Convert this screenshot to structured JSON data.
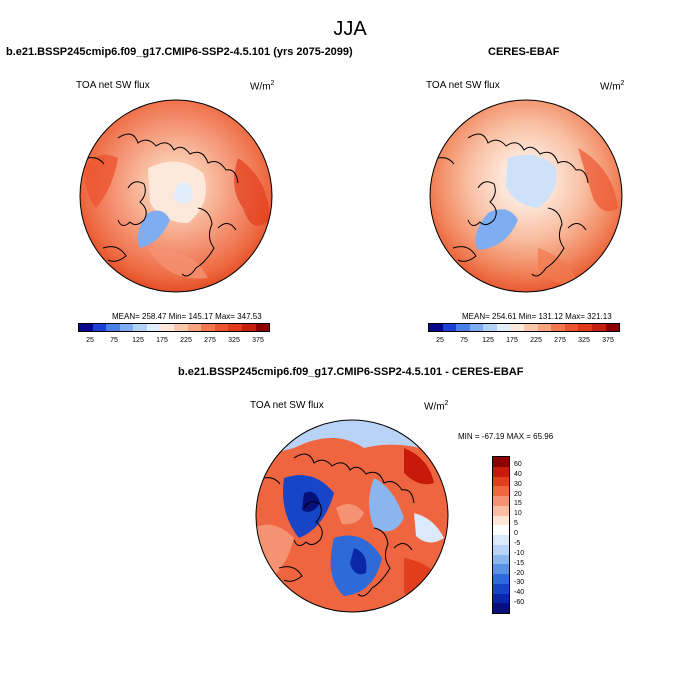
{
  "figure": {
    "season": "JJA",
    "left_title": "b.e21.BSSP245cmip6.f09_g17.CMIP6-SSP2-4.5.101 (yrs 2075-2099)",
    "right_title": "CERES-EBAF",
    "bottom_title": "b.e21.BSSP245cmip6.f09_g17.CMIP6-SSP2-4.5.101 - CERES-EBAF"
  },
  "panels": {
    "model": {
      "variable": "TOA net SW flux",
      "units_base": "W/m",
      "units_exp": "2",
      "stats": "MEAN= 258.47   Min= 145.17   Max= 347.53"
    },
    "obs": {
      "variable": "TOA net SW flux",
      "units_base": "W/m",
      "units_exp": "2",
      "stats": "MEAN= 254.61   Min= 131.12   Max= 321.13"
    },
    "diff": {
      "variable": "TOA net SW flux",
      "units_base": "W/m",
      "units_exp": "2",
      "stats": "MIN = -67.19 MAX =  65.96"
    }
  },
  "colorbars": {
    "main": {
      "colors": [
        "#08088c",
        "#1e3fd6",
        "#4a7fe8",
        "#7fadf2",
        "#b3d2f7",
        "#e2eefc",
        "#fde8dc",
        "#fbc8ae",
        "#f7a57f",
        "#f2794f",
        "#ec5530",
        "#e03a1a",
        "#c4200d",
        "#8b0000"
      ],
      "labels": [
        "25",
        "75",
        "125",
        "175",
        "225",
        "275",
        "325",
        "375"
      ]
    },
    "diff": {
      "colors": [
        "#8b0000",
        "#c81a0a",
        "#e23d1c",
        "#ef6540",
        "#f49272",
        "#f9bea3",
        "#fde6d8",
        "#ffffff",
        "#dce9fb",
        "#b8d3f6",
        "#8ab5ee",
        "#5a92e3",
        "#2e6bd8",
        "#1646c7",
        "#0a27a8",
        "#06107a"
      ],
      "labels": [
        "60",
        "40",
        "30",
        "20",
        "15",
        "10",
        "5",
        "0",
        "-5",
        "-10",
        "-15",
        "-20",
        "-30",
        "-40",
        "-60"
      ]
    }
  }
}
